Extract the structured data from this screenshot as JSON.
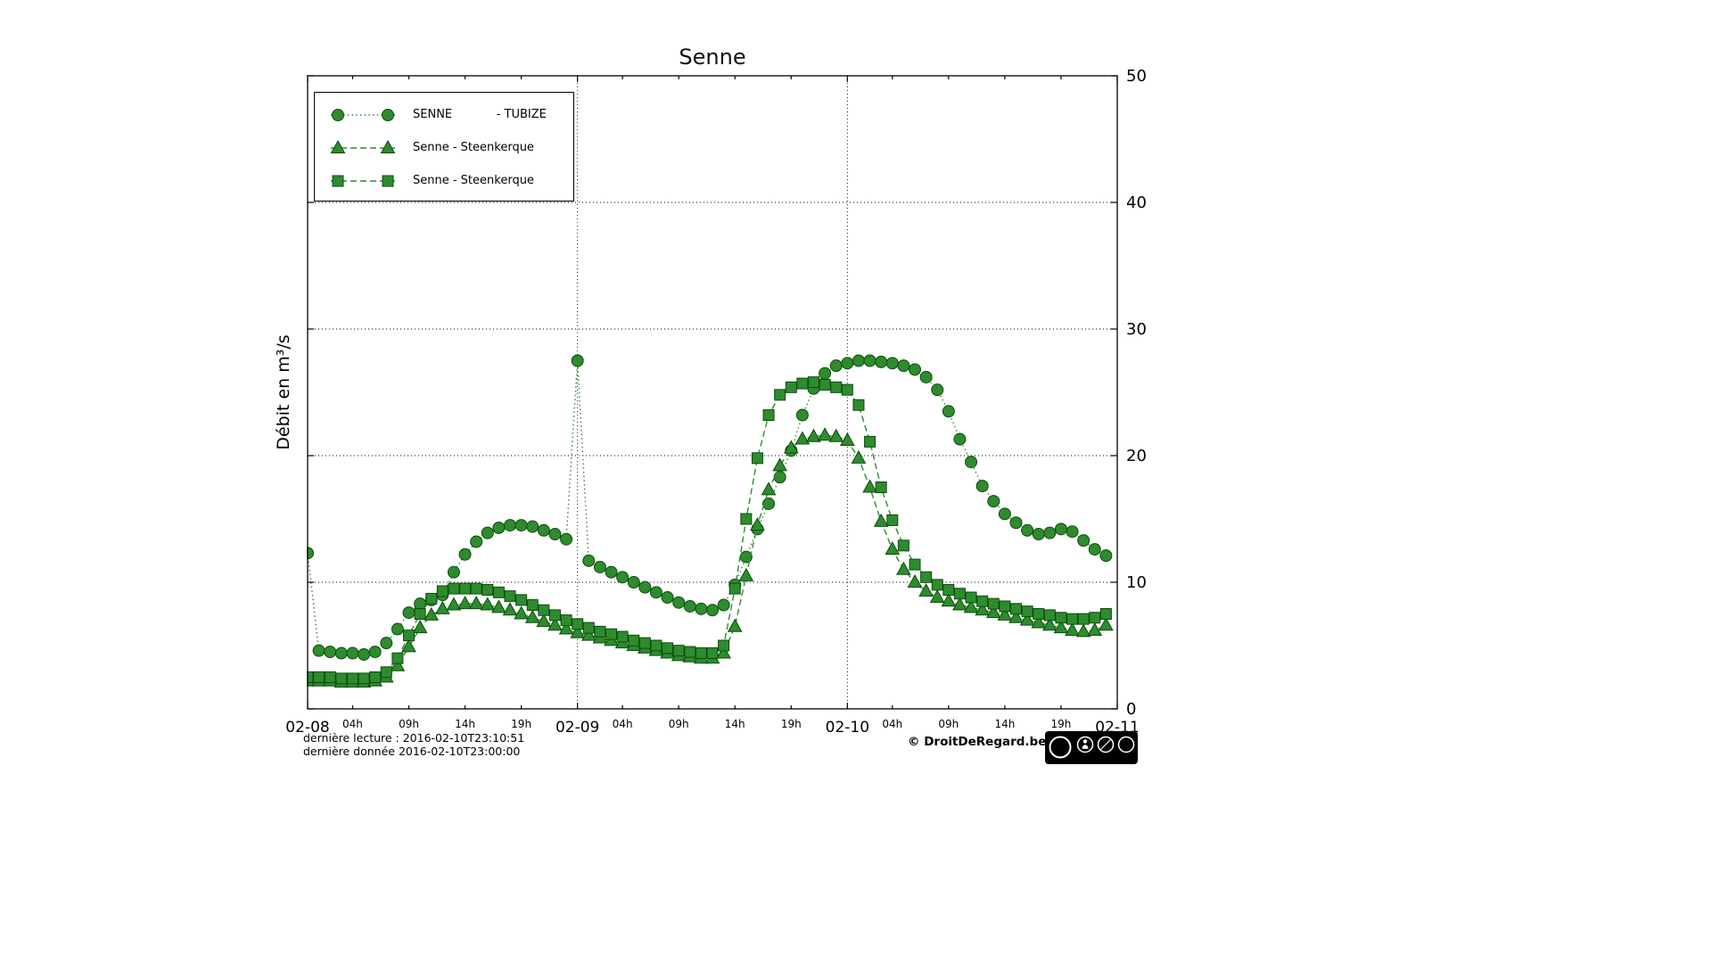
{
  "title": "Senne",
  "y_axis_label": "Débit en m³/s",
  "footer": {
    "last_reading": "dernière lecture : 2016-02-10T23:10:51",
    "last_data": "dernière donnée  2016-02-10T23:00:00",
    "copyright": "© DroitDeRegard.be",
    "license": "CC BY-NC-SA"
  },
  "chart_data": {
    "type": "line",
    "title": "Senne",
    "ylabel": "Débit en m³/s",
    "x_unit": "hours since 2016-02-08 00:00, one point per hour",
    "x_range_hours": [
      0,
      72
    ],
    "ylim": [
      0,
      50
    ],
    "y_ticks": [
      0,
      10,
      20,
      30,
      40,
      50
    ],
    "y_gridlines": [
      10,
      20,
      30,
      40
    ],
    "x_gridline_hours": [
      24,
      48
    ],
    "x_major_ticks": [
      {
        "hour": 0,
        "label": "02-08"
      },
      {
        "hour": 24,
        "label": "02-09"
      },
      {
        "hour": 48,
        "label": "02-10"
      },
      {
        "hour": 72,
        "label": "02-11"
      }
    ],
    "x_minor_ticks": [
      {
        "hour": 4,
        "label": "04h"
      },
      {
        "hour": 9,
        "label": "09h"
      },
      {
        "hour": 14,
        "label": "14h"
      },
      {
        "hour": 19,
        "label": "19h"
      },
      {
        "hour": 28,
        "label": "04h"
      },
      {
        "hour": 33,
        "label": "09h"
      },
      {
        "hour": 38,
        "label": "14h"
      },
      {
        "hour": 43,
        "label": "19h"
      },
      {
        "hour": 52,
        "label": "04h"
      },
      {
        "hour": 57,
        "label": "09h"
      },
      {
        "hour": 62,
        "label": "14h"
      },
      {
        "hour": 67,
        "label": "19h"
      }
    ],
    "grid": "dotted",
    "legend_position": "upper left",
    "style": {
      "color": "#2e8b2e",
      "marker_edge": "#0b4d0b",
      "background": "#ffffff",
      "frame": "#000000"
    },
    "series": [
      {
        "id": "senne-tubize",
        "label": "SENNE            - TUBIZE",
        "marker": "circle",
        "line_style": "dotted",
        "values": [
          12.3,
          4.6,
          4.5,
          4.4,
          4.4,
          4.3,
          4.5,
          5.2,
          6.3,
          7.6,
          8.3,
          8.6,
          9.0,
          10.8,
          12.2,
          13.2,
          13.9,
          14.3,
          14.5,
          14.5,
          14.4,
          14.1,
          13.8,
          13.4,
          27.5,
          11.7,
          11.2,
          10.8,
          10.4,
          10.0,
          9.6,
          9.2,
          8.8,
          8.4,
          8.1,
          7.9,
          7.8,
          8.2,
          9.8,
          12.0,
          14.2,
          16.2,
          18.3,
          20.4,
          23.2,
          25.3,
          26.5,
          27.1,
          27.3,
          27.5,
          27.5,
          27.4,
          27.3,
          27.1,
          26.8,
          26.2,
          25.2,
          23.5,
          21.3,
          19.5,
          17.6,
          16.4,
          15.4,
          14.7,
          14.1,
          13.8,
          13.9,
          14.2,
          14.0,
          13.3,
          12.6,
          12.1
        ]
      },
      {
        "id": "senne-steenkerque-1",
        "label": "Senne - Steenkerque",
        "marker": "triangle",
        "line_style": "dashed",
        "values": [
          2.2,
          2.2,
          2.2,
          2.1,
          2.1,
          2.1,
          2.2,
          2.5,
          3.4,
          4.9,
          6.4,
          7.4,
          7.9,
          8.2,
          8.3,
          8.3,
          8.2,
          8.0,
          7.8,
          7.5,
          7.2,
          6.9,
          6.6,
          6.3,
          6.0,
          5.8,
          5.6,
          5.4,
          5.2,
          5.0,
          4.8,
          4.6,
          4.4,
          4.2,
          4.1,
          4.0,
          4.0,
          4.4,
          6.5,
          10.5,
          14.5,
          17.3,
          19.2,
          20.6,
          21.3,
          21.5,
          21.6,
          21.5,
          21.2,
          19.8,
          17.5,
          14.8,
          12.6,
          11.0,
          10.0,
          9.3,
          8.8,
          8.5,
          8.2,
          8.0,
          7.8,
          7.6,
          7.4,
          7.2,
          7.0,
          6.8,
          6.6,
          6.4,
          6.2,
          6.1,
          6.2,
          6.6
        ]
      },
      {
        "id": "senne-steenkerque-2",
        "label": "Senne - Steenkerque",
        "marker": "square",
        "line_style": "dashed",
        "values": [
          2.5,
          2.5,
          2.5,
          2.4,
          2.4,
          2.4,
          2.5,
          2.9,
          4.0,
          5.8,
          7.5,
          8.7,
          9.3,
          9.5,
          9.5,
          9.5,
          9.4,
          9.2,
          8.9,
          8.6,
          8.2,
          7.8,
          7.4,
          7.0,
          6.7,
          6.4,
          6.1,
          5.9,
          5.7,
          5.4,
          5.2,
          5.0,
          4.8,
          4.6,
          4.5,
          4.4,
          4.4,
          5.0,
          9.5,
          15.0,
          19.8,
          23.2,
          24.8,
          25.4,
          25.7,
          25.8,
          25.6,
          25.4,
          25.2,
          24.0,
          21.1,
          17.5,
          14.9,
          12.9,
          11.4,
          10.4,
          9.8,
          9.4,
          9.1,
          8.8,
          8.5,
          8.3,
          8.1,
          7.9,
          7.7,
          7.5,
          7.4,
          7.2,
          7.1,
          7.1,
          7.2,
          7.5
        ]
      }
    ]
  }
}
